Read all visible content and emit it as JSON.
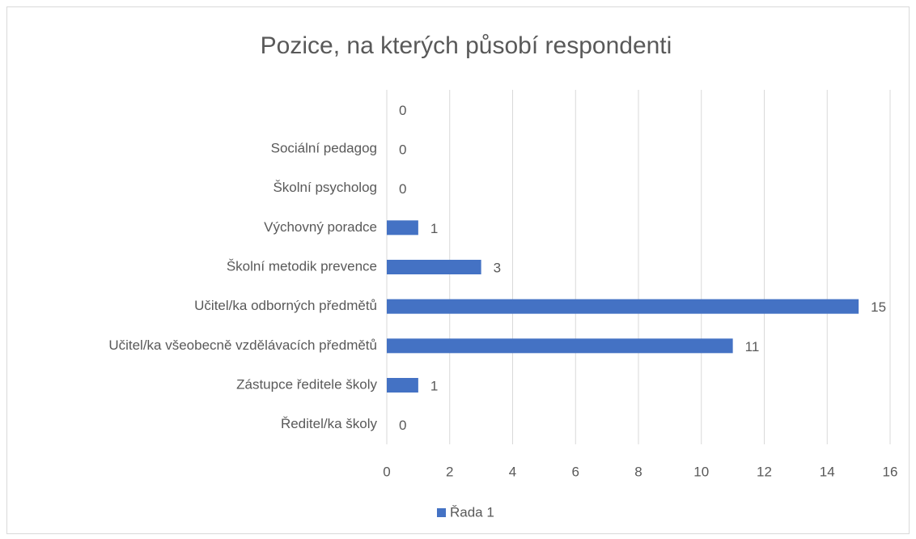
{
  "chart_data": {
    "type": "bar",
    "orientation": "horizontal",
    "title": "Pozice, na kterých působí respondenti",
    "categories": [
      null,
      "Sociální pedagog",
      "Školní psycholog",
      "Výchovný poradce",
      "Školní metodik prevence",
      "Učitel/ka odborných předmětů",
      "Učitel/ka všeobecně vzdělávacích předmětů",
      "Zástupce ředitele školy",
      "Ředitel/ka školy"
    ],
    "series": [
      {
        "name": "Řada 1",
        "color": "#4472c4",
        "values": [
          0,
          0,
          0,
          1,
          3,
          15,
          11,
          1,
          0
        ]
      }
    ],
    "xlim": [
      0,
      16
    ],
    "xticks": [
      0,
      2,
      4,
      6,
      8,
      10,
      12,
      14,
      16
    ],
    "grid": true,
    "legend": "bottom"
  }
}
